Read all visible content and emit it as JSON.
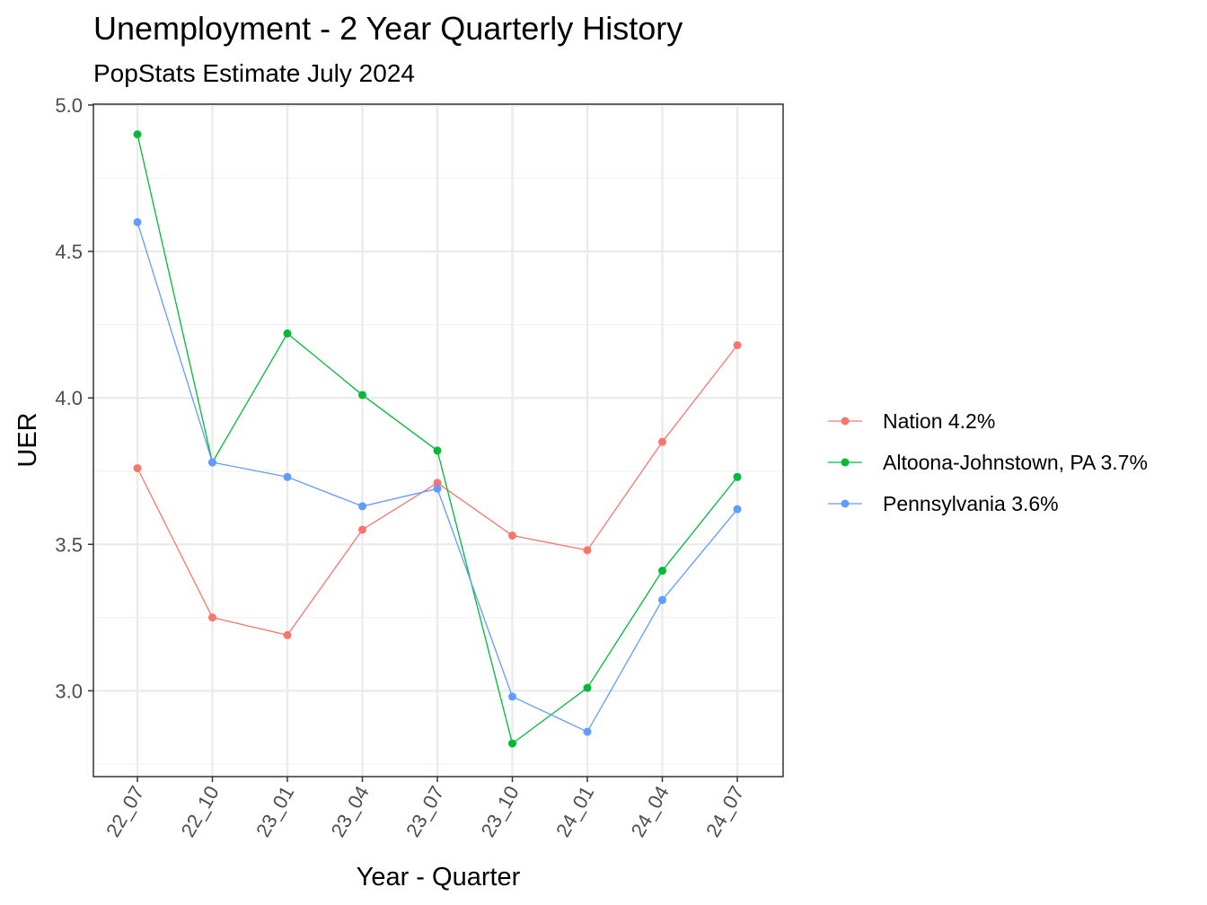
{
  "chart_data": {
    "type": "line",
    "title": "Unemployment - 2 Year Quarterly History",
    "subtitle": "PopStats Estimate July 2024",
    "xlabel": "Year - Quarter",
    "ylabel": "UER",
    "categories": [
      "22_07",
      "22_10",
      "23_01",
      "23_04",
      "23_07",
      "23_10",
      "24_01",
      "24_04",
      "24_07"
    ],
    "ylim": [
      2.71,
      5.0
    ],
    "yticks": [
      "3.0",
      "3.5",
      "4.0",
      "4.5",
      "5.0"
    ],
    "grid": true,
    "legend_position": "right",
    "series": [
      {
        "name": "Nation 4.2%",
        "color": "#F8766D",
        "values": [
          3.76,
          3.25,
          3.19,
          3.55,
          3.71,
          3.53,
          3.48,
          3.85,
          4.18
        ]
      },
      {
        "name": "Altoona-Johnstown, PA 3.7%",
        "color": "#00BA38",
        "values": [
          4.9,
          3.78,
          4.22,
          4.01,
          3.82,
          2.82,
          3.01,
          3.41,
          3.73
        ]
      },
      {
        "name": "Pennsylvania 3.6%",
        "color": "#619CFF",
        "values": [
          4.6,
          3.78,
          3.73,
          3.63,
          3.69,
          2.98,
          2.86,
          3.31,
          3.62
        ]
      }
    ]
  }
}
